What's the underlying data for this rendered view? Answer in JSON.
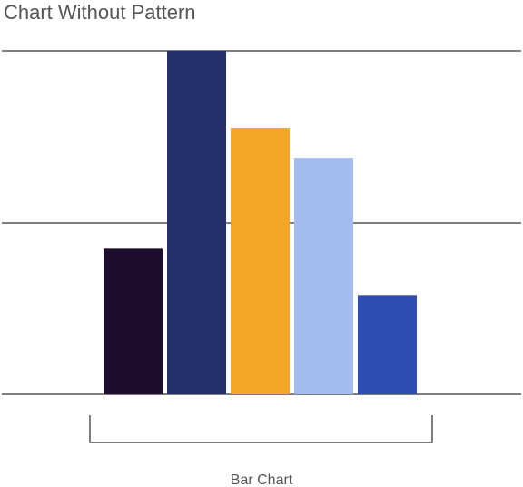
{
  "title": "Chart Without Pattern",
  "chart_data": {
    "type": "bar",
    "title": "Chart Without Pattern",
    "categories": [
      "Bar Chart"
    ],
    "series": [
      {
        "values": [
          17
        ],
        "color": "#1c0e2c"
      },
      {
        "values": [
          40
        ],
        "color": "#23306a"
      },
      {
        "values": [
          31
        ],
        "color": "#f4a627"
      },
      {
        "values": [
          27.5
        ],
        "color": "#a3bbef"
      },
      {
        "values": [
          11.5
        ],
        "color": "#2d4db2"
      }
    ],
    "xlabel": "",
    "ylabel": "",
    "ylim": [
      0,
      40
    ],
    "gridline_values": [
      0,
      20,
      40
    ],
    "grid": true,
    "legend": "none"
  }
}
